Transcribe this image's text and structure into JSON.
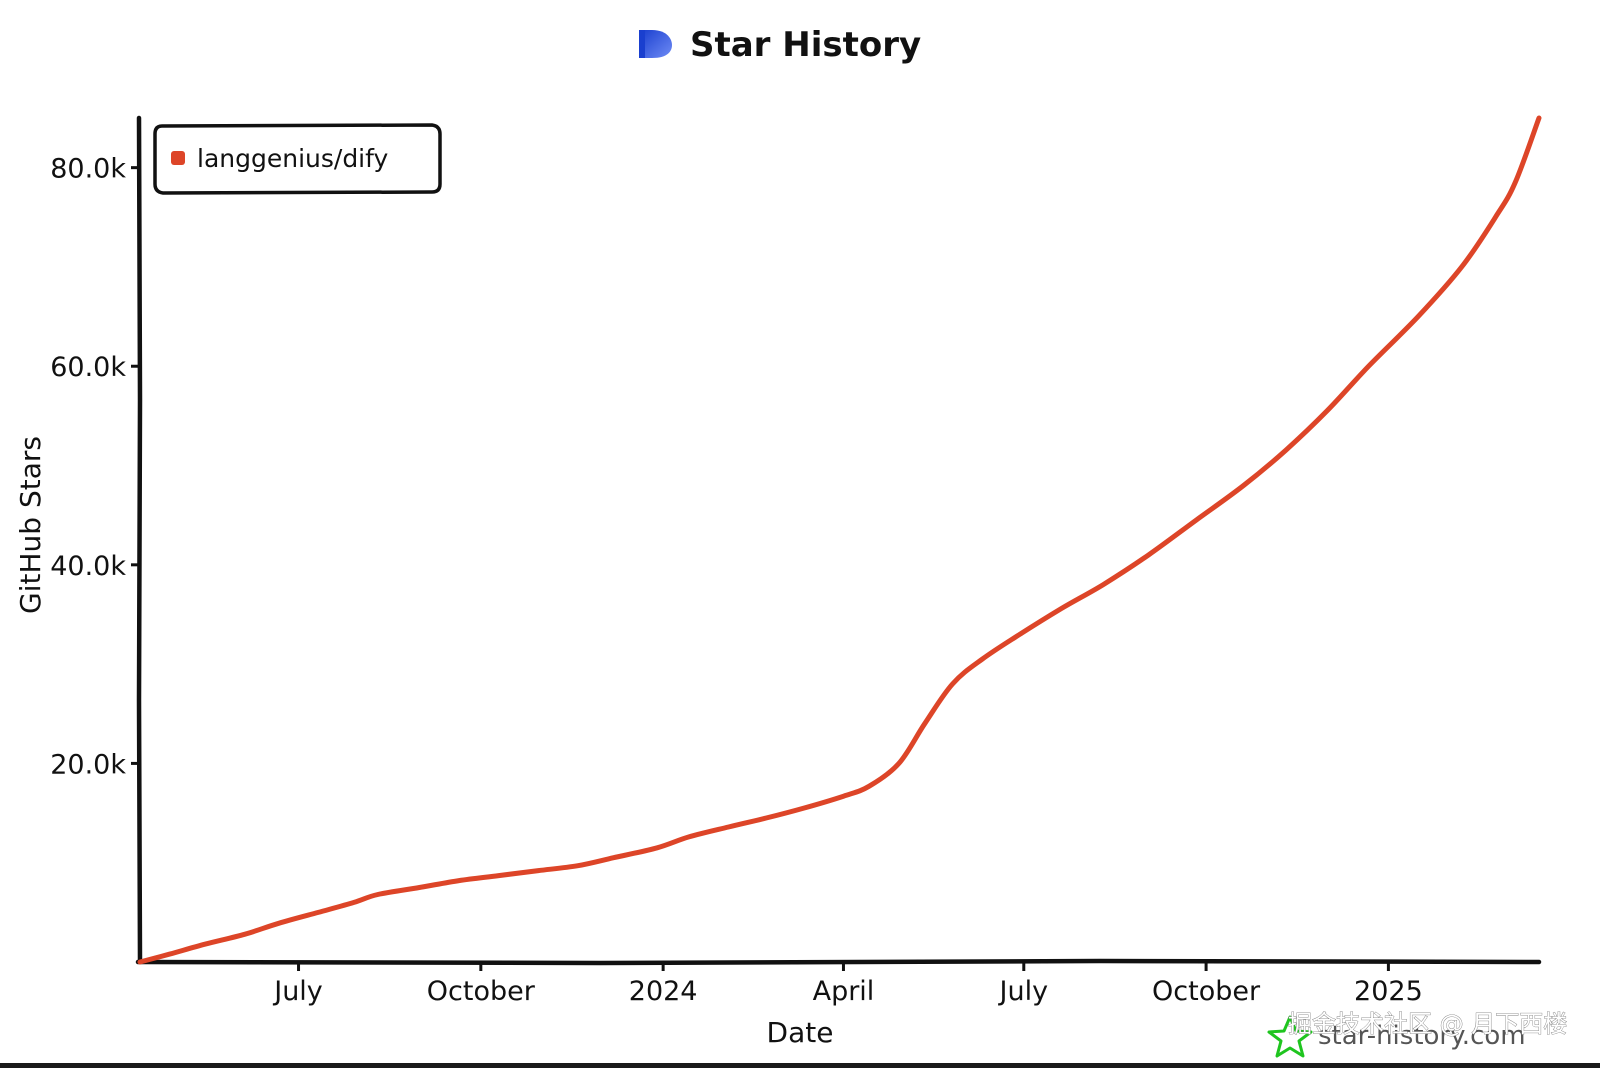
{
  "colors": {
    "series": "#dd4528",
    "axis": "#111111",
    "logo_blue": "#2d57e0",
    "watermark_star": "#1fc51f"
  },
  "icons": {
    "title_logo": "star-history-logo-icon",
    "watermark_logo": "star-outline-icon"
  },
  "chart_data": {
    "type": "line",
    "title": "Star History",
    "xlabel": "Date",
    "ylabel": "GitHub Stars",
    "x_type": "date",
    "xlim": [
      "2023-04-12",
      "2025-03-18"
    ],
    "ylim": [
      0,
      85000
    ],
    "x_ticks": [
      {
        "date": "2023-07-01",
        "label": "July"
      },
      {
        "date": "2023-10-01",
        "label": "October"
      },
      {
        "date": "2024-01-01",
        "label": "2024"
      },
      {
        "date": "2024-04-01",
        "label": "April"
      },
      {
        "date": "2024-07-01",
        "label": "July"
      },
      {
        "date": "2024-10-01",
        "label": "October"
      },
      {
        "date": "2025-01-01",
        "label": "2025"
      }
    ],
    "y_ticks": [
      {
        "value": 20000,
        "label": "20.0k"
      },
      {
        "value": 40000,
        "label": "40.0k"
      },
      {
        "value": 60000,
        "label": "60.0k"
      },
      {
        "value": 80000,
        "label": "80.0k"
      }
    ],
    "legend_position": "top-left",
    "series": [
      {
        "name": "langgenius/dify",
        "points": [
          [
            "2023-04-12",
            0
          ],
          [
            "2023-04-27",
            800
          ],
          [
            "2023-05-15",
            1800
          ],
          [
            "2023-06-04",
            2800
          ],
          [
            "2023-06-21",
            3900
          ],
          [
            "2023-07-11",
            5000
          ],
          [
            "2023-07-29",
            6000
          ],
          [
            "2023-08-10",
            6800
          ],
          [
            "2023-08-31",
            7500
          ],
          [
            "2023-09-20",
            8200
          ],
          [
            "2023-10-10",
            8700
          ],
          [
            "2023-10-30",
            9200
          ],
          [
            "2023-11-19",
            9700
          ],
          [
            "2023-12-07",
            10500
          ],
          [
            "2023-12-29",
            11500
          ],
          [
            "2024-01-14",
            12600
          ],
          [
            "2024-02-03",
            13600
          ],
          [
            "2024-02-22",
            14500
          ],
          [
            "2024-03-12",
            15500
          ],
          [
            "2024-04-01",
            16700
          ],
          [
            "2024-04-14",
            17700
          ],
          [
            "2024-04-29",
            20000
          ],
          [
            "2024-05-12",
            24000
          ],
          [
            "2024-05-26",
            28000
          ],
          [
            "2024-06-10",
            30500
          ],
          [
            "2024-06-29",
            33000
          ],
          [
            "2024-07-20",
            35600
          ],
          [
            "2024-08-10",
            38000
          ],
          [
            "2024-09-02",
            41000
          ],
          [
            "2024-09-26",
            44500
          ],
          [
            "2024-10-20",
            48000
          ],
          [
            "2024-11-10",
            51500
          ],
          [
            "2024-12-01",
            55500
          ],
          [
            "2024-12-22",
            60000
          ],
          [
            "2025-01-16",
            65000
          ],
          [
            "2025-02-07",
            70000
          ],
          [
            "2025-02-24",
            75000
          ],
          [
            "2025-03-06",
            78500
          ],
          [
            "2025-03-18",
            85000
          ]
        ]
      }
    ],
    "watermark": {
      "site": "star-history.com",
      "overlay": "掘金技术社区 @ 月下西楼"
    }
  }
}
